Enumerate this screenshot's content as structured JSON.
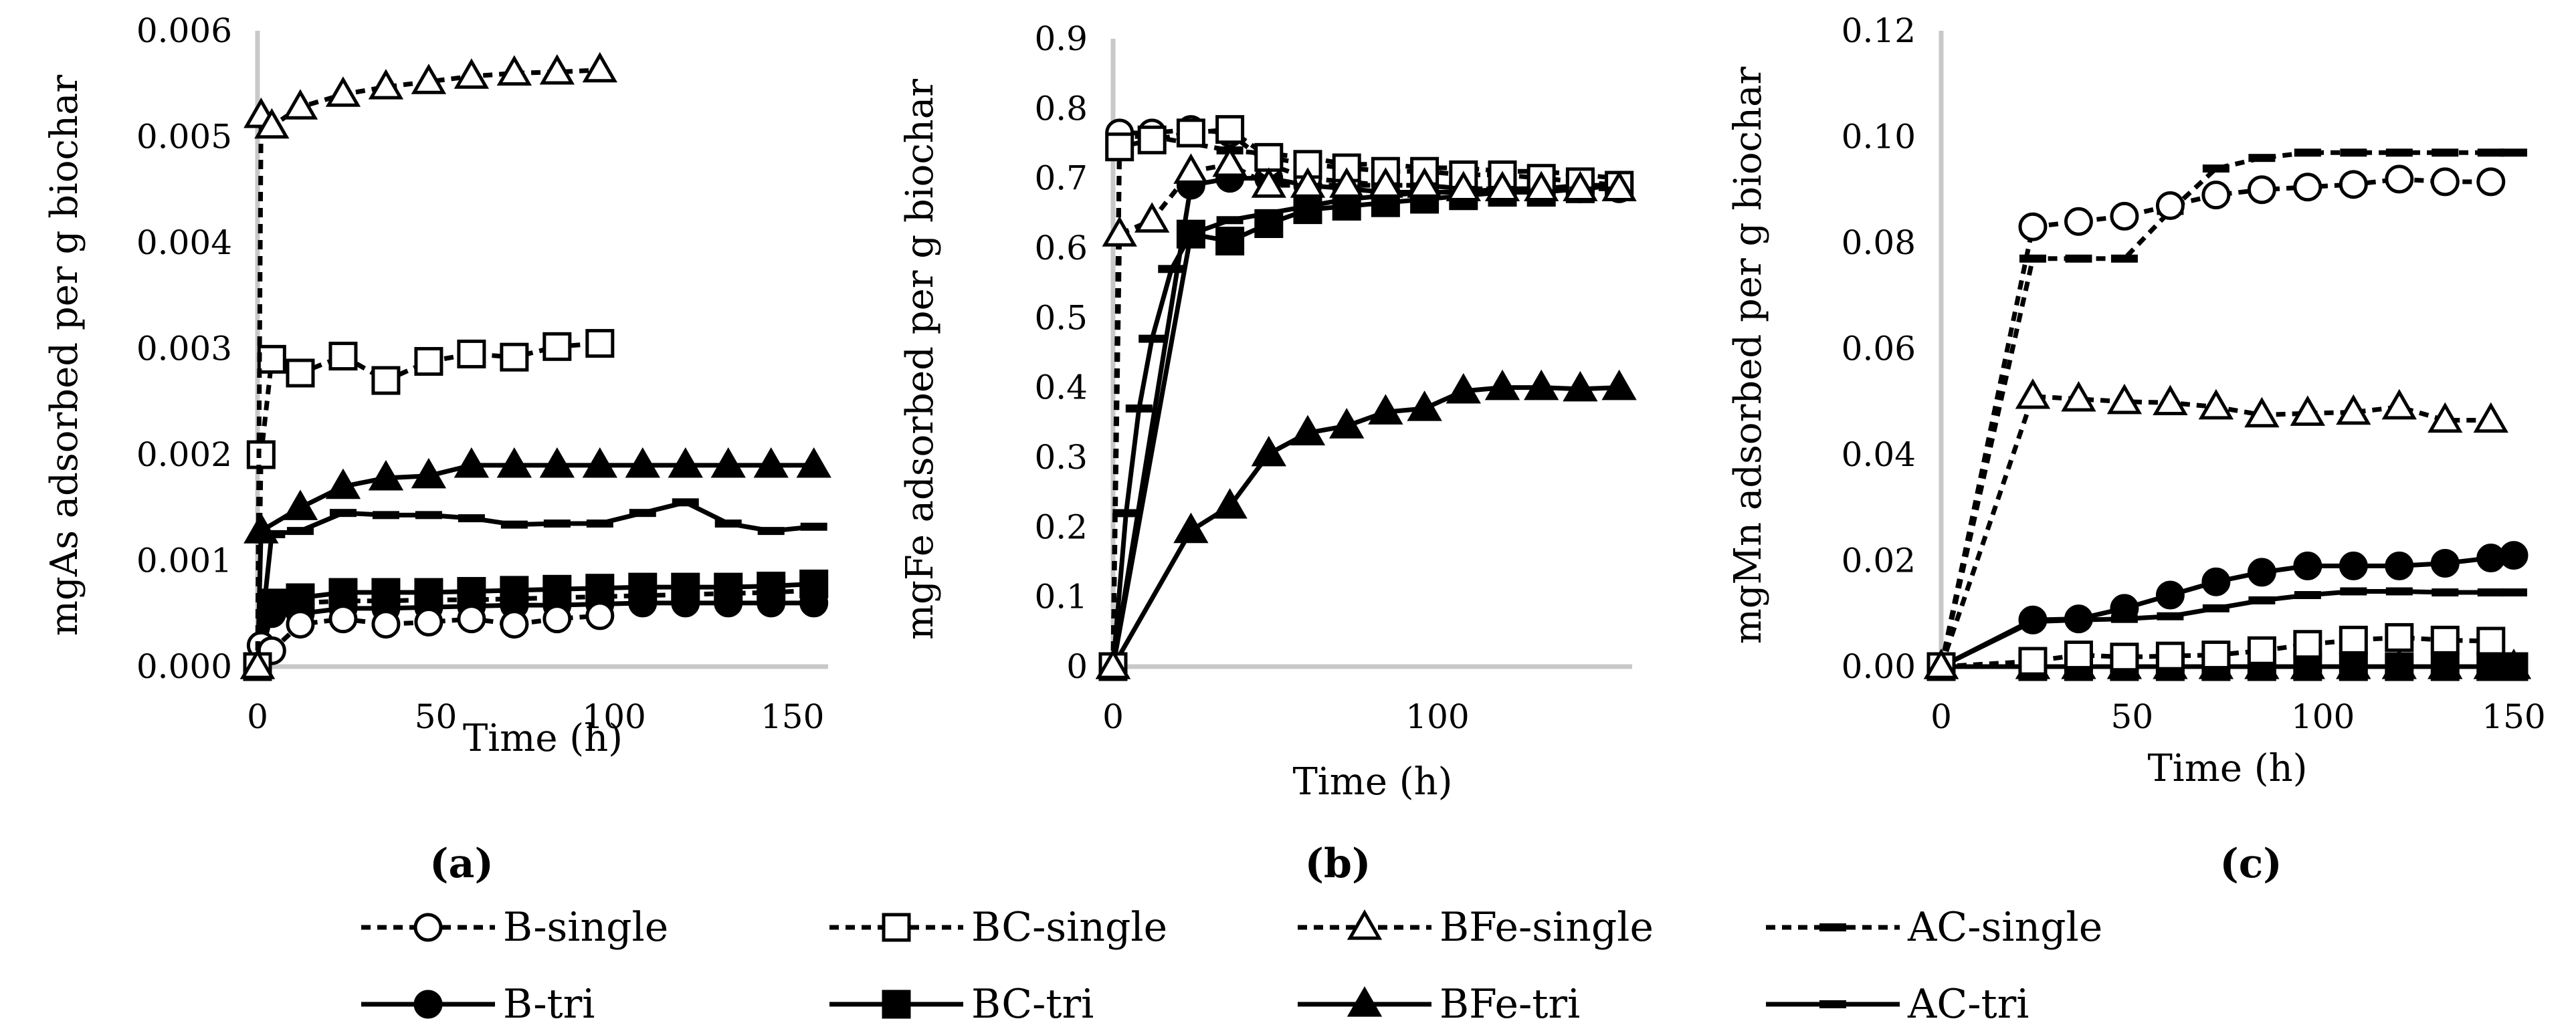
{
  "legend": {
    "items": [
      {
        "key": "B-single",
        "label": "B-single",
        "dash": true,
        "marker": "circle-open"
      },
      {
        "key": "BC-single",
        "label": "BC-single",
        "dash": true,
        "marker": "square-open"
      },
      {
        "key": "BFe-single",
        "label": "BFe-single",
        "dash": true,
        "marker": "triangle-open"
      },
      {
        "key": "AC-single",
        "label": "AC-single",
        "dash": true,
        "marker": "dash"
      },
      {
        "key": "B-tri",
        "label": "B-tri",
        "dash": false,
        "marker": "circle-filled"
      },
      {
        "key": "BC-tri",
        "label": "BC-tri",
        "dash": false,
        "marker": "square-filled"
      },
      {
        "key": "BFe-tri",
        "label": "BFe-tri",
        "dash": false,
        "marker": "triangle-filled"
      },
      {
        "key": "AC-tri",
        "label": "AC-tri",
        "dash": false,
        "marker": "dash"
      }
    ]
  },
  "chart_data": [
    {
      "type": "line",
      "panel_label": "(a)",
      "xlabel": "Time (h)",
      "ylabel": "mgAs adsorbed per g biochar",
      "xlim": [
        0,
        160
      ],
      "ylim": [
        0,
        0.006
      ],
      "xticks": [
        0,
        50,
        100,
        150
      ],
      "yticks": [
        0,
        0.001,
        0.002,
        0.003,
        0.004,
        0.005,
        0.006
      ],
      "ytick_labels": [
        "0.000",
        "0.001",
        "0.002",
        "0.003",
        "0.004",
        "0.005",
        "0.006"
      ],
      "series": [
        {
          "name": "B-single",
          "x": [
            0,
            1,
            4,
            12,
            24,
            36,
            48,
            60,
            72,
            84,
            96
          ],
          "y": [
            0,
            0.0002,
            0.00015,
            0.0004,
            0.00045,
            0.0004,
            0.00042,
            0.00045,
            0.0004,
            0.00045,
            0.00048
          ]
        },
        {
          "name": "BC-single",
          "x": [
            0,
            1,
            4,
            12,
            24,
            36,
            48,
            60,
            72,
            84,
            96
          ],
          "y": [
            0,
            0.002,
            0.0029,
            0.00277,
            0.00293,
            0.0027,
            0.00288,
            0.00295,
            0.00292,
            0.00302,
            0.00305
          ]
        },
        {
          "name": "BFe-single",
          "x": [
            0,
            1,
            4,
            12,
            24,
            36,
            48,
            60,
            72,
            84,
            96
          ],
          "y": [
            0,
            0.0052,
            0.0051,
            0.00528,
            0.0054,
            0.00547,
            0.00552,
            0.00557,
            0.0056,
            0.00561,
            0.00563
          ]
        },
        {
          "name": "AC-single",
          "x": [
            0,
            4,
            12,
            24,
            36,
            48,
            60,
            72,
            84,
            96,
            108,
            120,
            132,
            144,
            156
          ],
          "y": [
            0,
            0.0006,
            0.0006,
            0.00062,
            0.00062,
            0.00063,
            0.00063,
            0.00064,
            0.00065,
            0.00066,
            0.00067,
            0.00068,
            0.00069,
            0.0007,
            0.00072
          ]
        },
        {
          "name": "B-tri",
          "x": [
            0,
            4,
            12,
            24,
            36,
            48,
            60,
            72,
            84,
            96,
            108,
            120,
            132,
            144,
            156
          ],
          "y": [
            0,
            0.0005,
            0.0005,
            0.00055,
            0.00055,
            0.00056,
            0.00057,
            0.00058,
            0.00058,
            0.00059,
            0.0006,
            0.0006,
            0.0006,
            0.0006,
            0.0006
          ]
        },
        {
          "name": "BC-tri",
          "x": [
            0,
            4,
            12,
            24,
            36,
            48,
            60,
            72,
            84,
            96,
            108,
            120,
            132,
            144,
            156
          ],
          "y": [
            0,
            0.0006,
            0.00065,
            0.0007,
            0.0007,
            0.0007,
            0.00071,
            0.00072,
            0.00073,
            0.00074,
            0.00075,
            0.00075,
            0.00075,
            0.00076,
            0.00078
          ]
        },
        {
          "name": "BFe-tri",
          "x": [
            0,
            1,
            12,
            24,
            36,
            48,
            60,
            72,
            84,
            96,
            108,
            120,
            132,
            144,
            156
          ],
          "y": [
            0,
            0.00128,
            0.0015,
            0.0017,
            0.00178,
            0.0018,
            0.0019,
            0.0019,
            0.0019,
            0.0019,
            0.0019,
            0.0019,
            0.0019,
            0.0019,
            0.0019
          ]
        },
        {
          "name": "AC-tri",
          "x": [
            0,
            4,
            12,
            24,
            36,
            48,
            60,
            72,
            84,
            96,
            108,
            120,
            132,
            144,
            156
          ],
          "y": [
            0,
            0.00125,
            0.00128,
            0.00145,
            0.00143,
            0.00143,
            0.0014,
            0.00134,
            0.00135,
            0.00135,
            0.00145,
            0.00155,
            0.00135,
            0.00128,
            0.00132
          ]
        }
      ]
    },
    {
      "type": "line",
      "panel_label": "(b)",
      "xlabel": "Time (h)",
      "ylabel": "mgFe adsorbed per g biochar",
      "xlim": [
        0,
        160
      ],
      "ylim": [
        0,
        0.9
      ],
      "xticks": [
        0,
        100
      ],
      "yticks": [
        0,
        0.1,
        0.2,
        0.3,
        0.4,
        0.5,
        0.6,
        0.7,
        0.8,
        0.9
      ],
      "ytick_labels": [
        "0",
        "0.1",
        "0.2",
        "0.3",
        "0.4",
        "0.5",
        "0.6",
        "0.7",
        "0.8",
        "0.9"
      ],
      "series": [
        {
          "name": "B-single",
          "x": [
            0,
            2,
            12,
            24,
            36,
            48,
            60,
            72,
            84,
            96,
            108,
            120,
            132,
            144,
            156
          ],
          "y": [
            0,
            0.765,
            0.765,
            0.77,
            0.765,
            0.72,
            0.7,
            0.695,
            0.69,
            0.69,
            0.685,
            0.685,
            0.685,
            0.685,
            0.685
          ]
        },
        {
          "name": "BC-single",
          "x": [
            0,
            2,
            12,
            24,
            36,
            48,
            60,
            72,
            84,
            96,
            108,
            120,
            132,
            144,
            156
          ],
          "y": [
            0,
            0.745,
            0.755,
            0.765,
            0.77,
            0.73,
            0.72,
            0.715,
            0.71,
            0.71,
            0.705,
            0.705,
            0.7,
            0.695,
            0.69
          ]
        },
        {
          "name": "BFe-single",
          "x": [
            0,
            2,
            12,
            24,
            36,
            48,
            60,
            72,
            84,
            96,
            108,
            120,
            132,
            144,
            156
          ],
          "y": [
            0,
            0.62,
            0.64,
            0.71,
            0.72,
            0.69,
            0.69,
            0.69,
            0.69,
            0.69,
            0.685,
            0.685,
            0.685,
            0.685,
            0.685
          ]
        },
        {
          "name": "AC-single",
          "x": [
            0,
            2,
            12,
            24,
            36,
            48,
            60,
            72,
            84,
            96,
            108,
            120,
            132,
            144,
            156
          ],
          "y": [
            0,
            0.76,
            0.76,
            0.75,
            0.74,
            0.735,
            0.73,
            0.72,
            0.72,
            0.715,
            0.715,
            0.71,
            0.71,
            0.705,
            0.7
          ]
        },
        {
          "name": "B-tri",
          "x": [
            0,
            24,
            36,
            48,
            60,
            72,
            84,
            96,
            108,
            120,
            132,
            144,
            156
          ],
          "y": [
            0,
            0.69,
            0.7,
            0.7,
            0.69,
            0.685,
            0.68,
            0.68,
            0.68,
            0.68,
            0.68,
            0.685,
            0.69
          ]
        },
        {
          "name": "BC-tri",
          "x": [
            0,
            24,
            36,
            48,
            60,
            72,
            84,
            96,
            108,
            120,
            132,
            144,
            156
          ],
          "y": [
            0,
            0.62,
            0.61,
            0.635,
            0.655,
            0.66,
            0.665,
            0.67,
            0.675,
            0.68,
            0.68,
            0.685,
            0.69
          ]
        },
        {
          "name": "BFe-tri",
          "x": [
            0,
            24,
            36,
            48,
            60,
            72,
            84,
            96,
            108,
            120,
            132,
            144,
            156
          ],
          "y": [
            0,
            0.195,
            0.23,
            0.305,
            0.335,
            0.345,
            0.365,
            0.37,
            0.395,
            0.4,
            0.4,
            0.398,
            0.4
          ]
        },
        {
          "name": "AC-tri",
          "x": [
            0,
            4,
            8,
            12,
            18,
            24,
            36,
            48,
            60,
            72,
            84,
            96,
            108,
            120,
            132,
            144,
            156
          ],
          "y": [
            0,
            0.22,
            0.37,
            0.47,
            0.57,
            0.62,
            0.64,
            0.65,
            0.66,
            0.67,
            0.675,
            0.68,
            0.68,
            0.685,
            0.685,
            0.69,
            0.69
          ]
        }
      ]
    },
    {
      "type": "line",
      "panel_label": "(c)",
      "xlabel": "Time (h)",
      "ylabel": "mgMn adsorbed per g biochar",
      "xlim": [
        0,
        150
      ],
      "ylim": [
        0,
        0.12
      ],
      "xticks": [
        0,
        50,
        100,
        150
      ],
      "yticks": [
        0,
        0.02,
        0.04,
        0.06,
        0.08,
        0.1,
        0.12
      ],
      "ytick_labels": [
        "0.00",
        "0.02",
        "0.04",
        "0.06",
        "0.08",
        "0.10",
        "0.12"
      ],
      "series": [
        {
          "name": "B-single",
          "x": [
            0,
            24,
            36,
            48,
            60,
            72,
            84,
            96,
            108,
            120,
            132,
            144
          ],
          "y": [
            0,
            0.083,
            0.084,
            0.085,
            0.087,
            0.089,
            0.09,
            0.0905,
            0.091,
            0.092,
            0.0915,
            0.0915
          ]
        },
        {
          "name": "BC-single",
          "x": [
            0,
            24,
            36,
            48,
            60,
            72,
            84,
            96,
            108,
            120,
            132,
            144
          ],
          "y": [
            0,
            0.001,
            0.0022,
            0.0018,
            0.002,
            0.0022,
            0.003,
            0.0042,
            0.005,
            0.0055,
            0.005,
            0.0048
          ]
        },
        {
          "name": "BFe-single",
          "x": [
            0,
            24,
            36,
            48,
            60,
            72,
            84,
            96,
            108,
            120,
            132,
            144
          ],
          "y": [
            0,
            0.051,
            0.0505,
            0.05,
            0.0498,
            0.049,
            0.0475,
            0.0478,
            0.048,
            0.049,
            0.0465,
            0.0465
          ]
        },
        {
          "name": "AC-single",
          "x": [
            0,
            24,
            36,
            48,
            60,
            72,
            84,
            96,
            108,
            120,
            132,
            144,
            150
          ],
          "y": [
            0,
            0.077,
            0.077,
            0.077,
            0.086,
            0.094,
            0.096,
            0.097,
            0.097,
            0.097,
            0.097,
            0.097,
            0.097
          ]
        },
        {
          "name": "B-tri",
          "x": [
            0,
            24,
            36,
            48,
            60,
            72,
            84,
            96,
            108,
            120,
            132,
            144,
            150
          ],
          "y": [
            0,
            0.0088,
            0.009,
            0.011,
            0.0135,
            0.016,
            0.0178,
            0.019,
            0.019,
            0.019,
            0.0195,
            0.0205,
            0.021
          ]
        },
        {
          "name": "BC-tri",
          "x": [
            0,
            24,
            36,
            48,
            60,
            72,
            84,
            96,
            108,
            120,
            132,
            144,
            150
          ],
          "y": [
            0,
            0,
            0,
            0,
            0,
            0,
            0,
            0,
            0,
            0,
            0,
            0,
            0
          ]
        },
        {
          "name": "BFe-tri",
          "x": [
            0,
            24,
            36,
            48,
            60,
            72,
            84,
            96,
            108,
            120,
            132,
            144,
            150
          ],
          "y": [
            0,
            0,
            0,
            0,
            0,
            0,
            0,
            0,
            0,
            0,
            0,
            0,
            0
          ]
        },
        {
          "name": "AC-tri",
          "x": [
            0,
            24,
            36,
            48,
            60,
            72,
            84,
            96,
            108,
            120,
            132,
            144,
            150
          ],
          "y": [
            0,
            0.0085,
            0.0088,
            0.009,
            0.0095,
            0.011,
            0.0125,
            0.0135,
            0.0142,
            0.0142,
            0.014,
            0.014,
            0.014
          ]
        }
      ]
    }
  ]
}
